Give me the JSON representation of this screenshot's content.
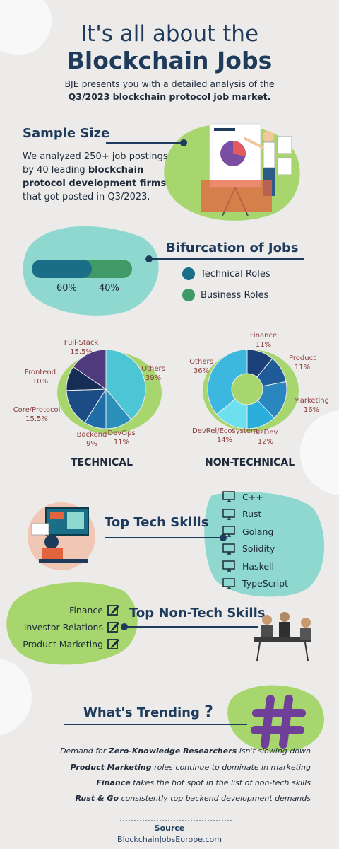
{
  "header": {
    "title_line1": "It's all about the",
    "title_line2": "Blockchain Jobs",
    "intro_line1": "BJE presents you with a detailed analysis of the",
    "intro_line2": "Q3/2023 blockchain protocol job market."
  },
  "sample_size": {
    "title": "Sample Size",
    "line1": "We analyzed 250+ job postings",
    "line2_pre": "by 40 leading ",
    "line2_bold": "blockchain",
    "line3": "protocol development firms",
    "line4": "that got posted in Q3/2023."
  },
  "bifurcation": {
    "title": "Bifurcation of Jobs",
    "legend_technical": "Technical Roles",
    "legend_business": "Business Roles",
    "technical_pct_label": "60%",
    "business_pct_label": "40%",
    "colors": {
      "technical": "#1a6e87",
      "business": "#3f9a67"
    }
  },
  "chart_data": [
    {
      "type": "pie",
      "title": "TECHNICAL",
      "slices": [
        {
          "label": "Others",
          "pct_label": "39%",
          "value": 39,
          "color": "#4cc6d4"
        },
        {
          "label": "DevOps",
          "pct_label": "11%",
          "value": 11,
          "color": "#2a8fb9"
        },
        {
          "label": "Backend",
          "pct_label": "9%",
          "value": 9,
          "color": "#1f6da6"
        },
        {
          "label": "Core/Protocol",
          "pct_label": "15.5%",
          "value": 15.5,
          "color": "#1b4c86"
        },
        {
          "label": "Frontend",
          "pct_label": "10%",
          "value": 10,
          "color": "#162d56"
        },
        {
          "label": "Full-Stack",
          "pct_label": "15.5%",
          "value": 15.5,
          "color": "#4e3a7c"
        }
      ]
    },
    {
      "type": "donut",
      "title": "NON-TECHNICAL",
      "slices": [
        {
          "label": "Finance",
          "pct_label": "11%",
          "value": 11,
          "color": "#1b3f78"
        },
        {
          "label": "Product",
          "pct_label": "11%",
          "value": 11,
          "color": "#1f5a99"
        },
        {
          "label": "Marketing",
          "pct_label": "16%",
          "value": 16,
          "color": "#2a86bf"
        },
        {
          "label": "BizDev",
          "pct_label": "12%",
          "value": 12,
          "color": "#2aaedb"
        },
        {
          "label": "DevRel/Ecosystem",
          "pct_label": "14%",
          "value": 14,
          "color": "#6de0ef"
        },
        {
          "label": "Others",
          "pct_label": "36%",
          "value": 36,
          "color": "#3cb7e0"
        }
      ]
    }
  ],
  "tech_skills": {
    "title": "Top Tech Skills",
    "items": [
      "C++",
      "Rust",
      "Golang",
      "Solidity",
      "Haskell",
      "TypeScript"
    ]
  },
  "nontech_skills": {
    "title": "Top Non-Tech Skills",
    "items": [
      "Finance",
      "Investor Relations",
      "Product Marketing"
    ]
  },
  "trending": {
    "title": "What's Trending",
    "t1_bold": "Zero-Knowledge Researchers",
    "t1_pre": "Demand for ",
    "t1_post": " isn't slowing down",
    "t2_bold": "Product Marketing",
    "t2_post": " roles continue to dominate in marketing",
    "t3_bold": "Finance",
    "t3_post": " takes the hot spot in the list of non-tech skills",
    "t4_bold": "Rust & Go",
    "t4_post": " consistently top backend development demands"
  },
  "source": {
    "label": "Source",
    "site": "BlockchainJobsEurope.com"
  }
}
